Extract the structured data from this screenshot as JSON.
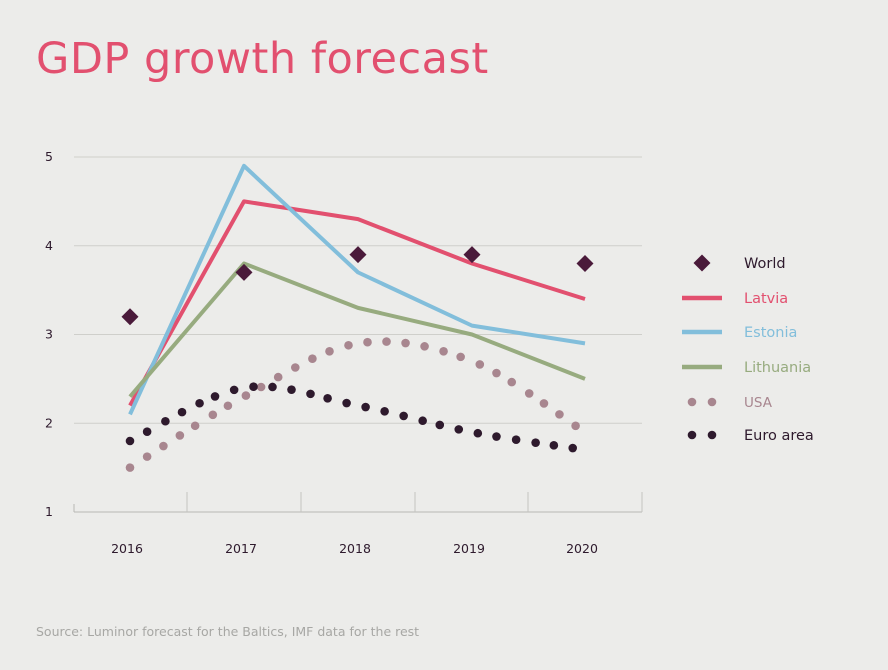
{
  "chart_data": {
    "type": "line",
    "title": "GDP growth forecast",
    "source": "Source: Luminor forecast for the Baltics, IMF data for the rest",
    "x": [
      "2016",
      "2017",
      "2018",
      "2019",
      "2020"
    ],
    "ylim": [
      1,
      5
    ],
    "yticks": [
      "1",
      "2",
      "3",
      "4",
      "5"
    ],
    "grid": true,
    "legend_position": "right",
    "series": [
      {
        "name": "World",
        "style": "diamond",
        "color": "#4a1a3a",
        "values": [
          3.2,
          3.7,
          3.9,
          3.9,
          3.8
        ]
      },
      {
        "name": "Latvia",
        "style": "line",
        "color": "#e2506f",
        "values": [
          2.2,
          4.5,
          4.3,
          3.8,
          3.4
        ]
      },
      {
        "name": "Estonia",
        "style": "line",
        "color": "#82bedb",
        "values": [
          2.1,
          4.9,
          3.7,
          3.1,
          2.9
        ]
      },
      {
        "name": "Lithuania",
        "style": "line",
        "color": "#97ab7f",
        "values": [
          2.3,
          3.8,
          3.3,
          3.0,
          2.5
        ]
      },
      {
        "name": "USA",
        "style": "dots",
        "color": "#a8868f",
        "values": [
          1.5,
          2.3,
          2.9,
          2.7,
          1.9
        ]
      },
      {
        "name": "Euro area",
        "style": "dots",
        "color": "#2e1a2d",
        "values": [
          1.8,
          2.4,
          2.2,
          1.9,
          1.7
        ]
      }
    ]
  }
}
